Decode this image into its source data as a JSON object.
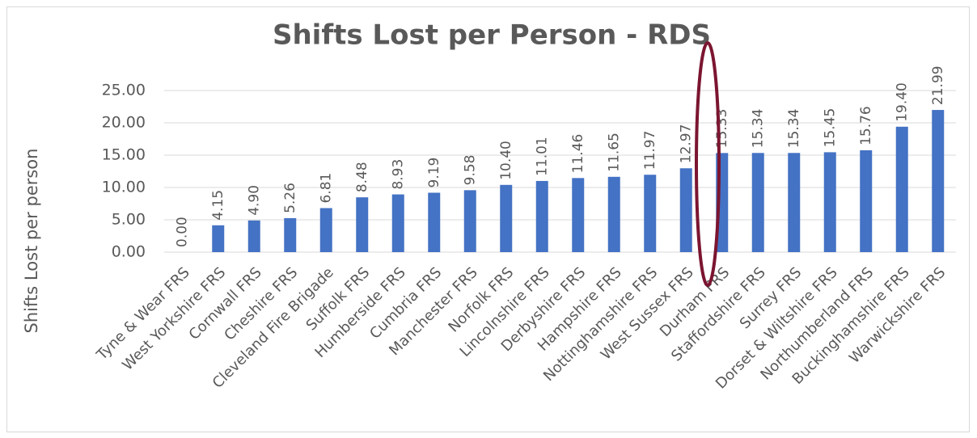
{
  "chart_data": {
    "type": "bar",
    "title": "Shifts Lost per Person - RDS",
    "y_label": "Shifts Lost per person",
    "categories": [
      "Tyne & Wear FRS",
      "West Yorkshire FRS",
      "Cornwall FRS",
      "Cheshire FRS",
      "Cleveland Fire Brigade",
      "Suffolk FRS",
      "Humberside FRS",
      "Cumbria FRS",
      "Manchester FRS",
      "Norfolk FRS",
      "Lincolnshire FRS",
      "Derbyshire FRS",
      "Hampshire FRS",
      "Nottinghamshire FRS",
      "West Sussex FRS",
      "Durham FRS",
      "Staffordshire FRS",
      "Surrey FRS",
      "Dorset & Wiltshire FRS",
      "Northumberland FRS",
      "Buckinghamshire FRS",
      "Warwickshire FRS"
    ],
    "values": [
      0,
      4.15,
      4.9,
      5.26,
      6.81,
      8.48,
      8.93,
      9.19,
      9.58,
      10.4,
      11.01,
      11.46,
      11.65,
      11.97,
      12.97,
      15.33,
      15.34,
      15.34,
      15.45,
      15.76,
      19.4,
      21.99
    ],
    "value_labels": [
      "0.00",
      "4.15",
      "4.90",
      "5.26",
      "6.81",
      "8.48",
      "8.93",
      "9.19",
      "9.58",
      "10.40",
      "11.01",
      "11.46",
      "11.65",
      "11.97",
      "12.97",
      "15.33",
      "15.34",
      "15.34",
      "15.45",
      "15.76",
      "19.40",
      "21.99"
    ],
    "color": "#4472c4",
    "ylim": [
      0,
      25
    ],
    "yticks": [
      {
        "value": 0,
        "label": "0.00"
      },
      {
        "value": 5,
        "label": "5.00"
      },
      {
        "value": 10,
        "label": "10.00"
      },
      {
        "value": 15,
        "label": "15.00"
      },
      {
        "value": 20,
        "label": "20.00"
      },
      {
        "value": 25,
        "label": "25.00"
      }
    ],
    "grid": true
  }
}
